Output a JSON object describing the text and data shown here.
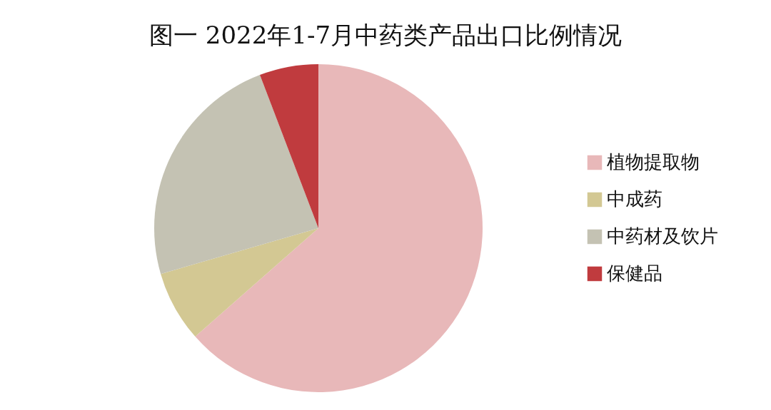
{
  "chart_data": {
    "type": "pie",
    "title": "图一 2022年1-7月中药类产品出口比例情况",
    "categories": [
      "植物提取物",
      "中成药",
      "中药材及饮片",
      "保健品"
    ],
    "values": [
      63.5,
      7.0,
      23.7,
      5.8
    ],
    "colors": [
      "#e8b8b9",
      "#d3c893",
      "#c4c2b3",
      "#c03b3e"
    ],
    "legend": "right"
  }
}
